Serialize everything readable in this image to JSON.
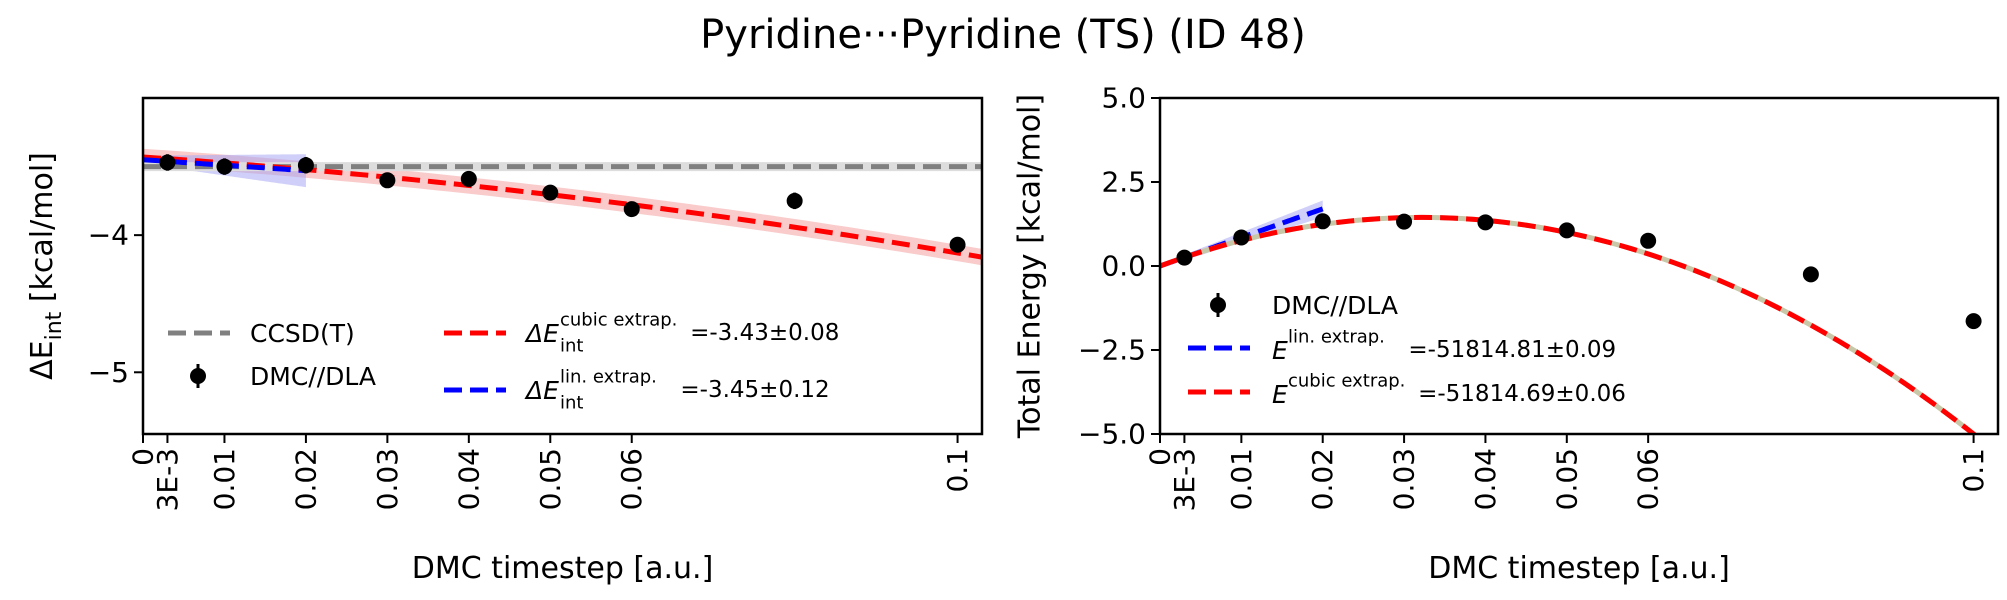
{
  "figure": {
    "title": "Pyridine···Pyridine (TS) (ID 48)"
  },
  "chart_data": [
    {
      "type": "scatter",
      "title": "",
      "xlabel": "DMC timestep [a.u.]",
      "ylabel": "ΔE",
      "ylabel_sub": "int",
      "ylabel_unit": " [kcal/mol]",
      "xlim": [
        0,
        0.103
      ],
      "ylim": [
        -5.45,
        -3.0
      ],
      "x_ticks": [
        0,
        0.003,
        0.01,
        0.02,
        0.03,
        0.04,
        0.05,
        0.06,
        0.1
      ],
      "x_tick_labels": [
        "0",
        "3E-3",
        "0.01",
        "0.02",
        "0.03",
        "0.04",
        "0.05",
        "0.06",
        "0.1"
      ],
      "y_ticks": [
        -4,
        -5
      ],
      "y_tick_labels": [
        "−4",
        "−5"
      ],
      "series": [
        {
          "name": "DMC//DLA",
          "kind": "errorbar",
          "color": "#000000",
          "x": [
            0.003,
            0.01,
            0.02,
            0.03,
            0.04,
            0.05,
            0.06,
            0.08,
            0.1
          ],
          "y": [
            -3.47,
            -3.5,
            -3.49,
            -3.6,
            -3.59,
            -3.69,
            -3.81,
            -3.75,
            -4.07
          ],
          "yerr": [
            0.06,
            0.06,
            0.06,
            0.04,
            0.05,
            0.05,
            0.05,
            0.06,
            0.05
          ]
        },
        {
          "name": "CCSD(T)",
          "kind": "hline",
          "color": "#808080",
          "y": -3.5
        }
      ],
      "fits": [
        {
          "name": "ΔE",
          "sub": "int",
          "sup": "cubic extrap.",
          "value_text": "=-3.43±0.08",
          "color": "#ff0000",
          "band_color": "#f4a0a0",
          "coef": [
            -3.43,
            -4.0,
            -30.0,
            0.0
          ],
          "band": 0.06,
          "xrange": [
            0,
            0.103
          ]
        },
        {
          "name": "ΔE",
          "sub": "int",
          "sup": "lin. extrap.",
          "value_text": "=-3.45±0.12",
          "color": "#0000ff",
          "band_color": "#a8a8f4",
          "coef": [
            -3.45,
            -4.0,
            0.0,
            0.0
          ],
          "band_from_err": [
            0.03,
            0.12
          ],
          "xrange": [
            0,
            0.02
          ]
        }
      ],
      "legend": {
        "placement": "lower-left",
        "entries": [
          {
            "label": "CCSD(T)"
          },
          {
            "label": "DMC//DLA"
          },
          {
            "label": "ΔE",
            "sub": "int",
            "sup": "cubic extrap.",
            "value": "=-3.43±0.08"
          },
          {
            "label": "ΔE",
            "sub": "int",
            "sup": "lin. extrap.",
            "value": "=-3.45±0.12"
          }
        ]
      }
    },
    {
      "type": "scatter",
      "title": "",
      "xlabel": "DMC timestep [a.u.]",
      "ylabel": "Total Energy [kcal/mol]",
      "xlim": [
        0,
        0.103
      ],
      "ylim": [
        -5.0,
        5.0
      ],
      "x_ticks": [
        0,
        0.003,
        0.01,
        0.02,
        0.03,
        0.04,
        0.05,
        0.06,
        0.1
      ],
      "x_tick_labels": [
        "0",
        "3E-3",
        "0.01",
        "0.02",
        "0.03",
        "0.04",
        "0.05",
        "0.06",
        "0.1"
      ],
      "y_ticks": [
        5.0,
        2.5,
        0.0,
        -2.5,
        -5.0
      ],
      "y_tick_labels": [
        "5.0",
        "2.5",
        "0.0",
        "−2.5",
        "−5.0"
      ],
      "series": [
        {
          "name": "DMC//DLA",
          "kind": "errorbar",
          "color": "#000000",
          "x": [
            0.003,
            0.01,
            0.02,
            0.03,
            0.04,
            0.05,
            0.06,
            0.08,
            0.1
          ],
          "y": [
            0.25,
            0.85,
            1.33,
            1.32,
            1.3,
            1.06,
            0.75,
            -0.25,
            -1.64
          ],
          "yerr": [
            0.06,
            0.06,
            0.06,
            0.05,
            0.05,
            0.05,
            0.05,
            0.05,
            0.05
          ]
        }
      ],
      "fits": [
        {
          "name": "E",
          "sup": "lin. extrap.",
          "value_text": "=-51814.81±0.09",
          "color": "#0000ff",
          "band_color": "#a8a8f4",
          "coef": [
            0.0,
            85.0,
            0.0,
            0.0
          ],
          "band_from_err": [
            0.05,
            0.25
          ],
          "xrange": [
            0,
            0.02
          ]
        },
        {
          "name": "E",
          "sup": "cubic extrap.",
          "value_text": "=-51814.69±0.06",
          "color": "#ff0000",
          "dash_alt": "#c8c8a8",
          "coef": [
            0.0,
            90.0,
            -1400.0,
            0.0
          ],
          "band": 0.05,
          "xrange": [
            0,
            0.103
          ]
        }
      ],
      "legend": {
        "placement": "lower-left",
        "entries": [
          {
            "label": "DMC//DLA"
          },
          {
            "label": "E",
            "sup": "lin. extrap.",
            "value": "=-51814.81±0.09"
          },
          {
            "label": "E",
            "sup": "cubic extrap.",
            "value": "=-51814.69±0.06"
          }
        ]
      }
    }
  ]
}
